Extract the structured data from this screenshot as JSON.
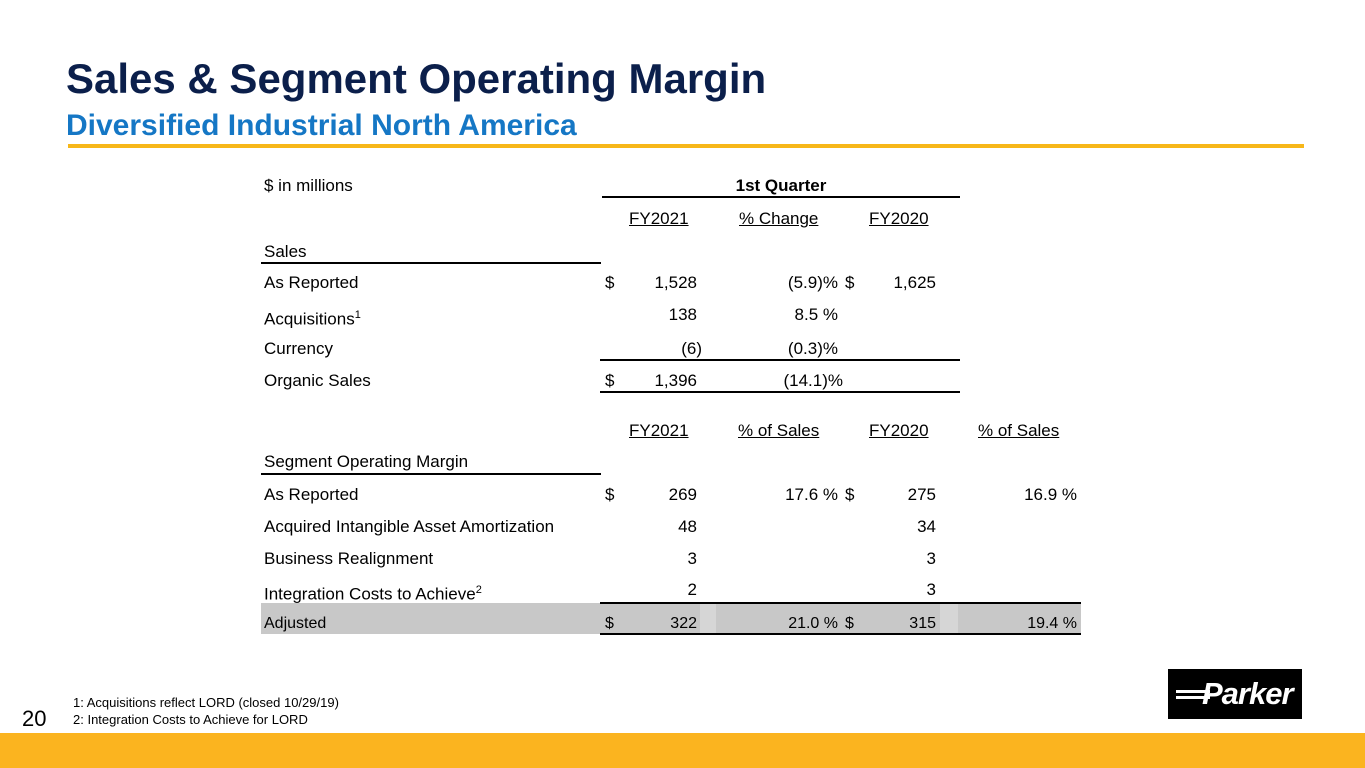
{
  "title": "Sales & Segment Operating Margin",
  "subtitle": "Diversified Industrial North America",
  "units_label": "$ in millions",
  "period_header": "1st Quarter",
  "sales_table": {
    "col_fy2021": "FY2021",
    "col_change": "% Change",
    "col_fy2020": "FY2020",
    "section": "Sales",
    "rows": [
      {
        "label": "As Reported",
        "sup": "",
        "cur1": "$",
        "fy2021": "1,528",
        "change": "(5.9)%",
        "cur2": "$",
        "fy2020": "1,625"
      },
      {
        "label": "Acquisitions",
        "sup": "1",
        "cur1": "",
        "fy2021": "138",
        "change": "8.5 %",
        "cur2": "",
        "fy2020": ""
      },
      {
        "label": "Currency",
        "sup": "",
        "cur1": "",
        "fy2021": "(6)",
        "change": "(0.3)%",
        "cur2": "",
        "fy2020": ""
      },
      {
        "label": "Organic Sales",
        "sup": "",
        "cur1": "$",
        "fy2021": "1,396",
        "change": "(14.1)%",
        "cur2": "",
        "fy2020": ""
      }
    ]
  },
  "margin_table": {
    "col_fy2021": "FY2021",
    "col_pct1": "% of Sales",
    "col_fy2020": "FY2020",
    "col_pct2": "% of Sales",
    "section": "Segment Operating Margin",
    "rows": [
      {
        "label": "As Reported",
        "sup": "",
        "cur1": "$",
        "fy2021": "269",
        "pct1": "17.6 %",
        "cur2": "$",
        "fy2020": "275",
        "pct2": "16.9 %"
      },
      {
        "label": "Acquired Intangible Asset Amortization",
        "sup": "",
        "cur1": "",
        "fy2021": "48",
        "pct1": "",
        "cur2": "",
        "fy2020": "34",
        "pct2": ""
      },
      {
        "label": "Business Realignment",
        "sup": "",
        "cur1": "",
        "fy2021": "3",
        "pct1": "",
        "cur2": "",
        "fy2020": "3",
        "pct2": ""
      },
      {
        "label": "Integration Costs to Achieve",
        "sup": "2",
        "cur1": "",
        "fy2021": "2",
        "pct1": "",
        "cur2": "",
        "fy2020": "3",
        "pct2": ""
      },
      {
        "label": "Adjusted",
        "sup": "",
        "cur1": "$",
        "fy2021": "322",
        "pct1": "21.0 %",
        "cur2": "$",
        "fy2020": "315",
        "pct2": "19.4 %"
      }
    ]
  },
  "footnotes": [
    "1: Acquisitions reflect LORD (closed 10/29/19)",
    "2: Integration Costs to Achieve for LORD"
  ],
  "page_number": "20",
  "logo_text": "Parker",
  "colors": {
    "title": "#0b1f4b",
    "subtitle": "#1577c5",
    "accent": "#f7b719",
    "band": "#fbb41f"
  }
}
